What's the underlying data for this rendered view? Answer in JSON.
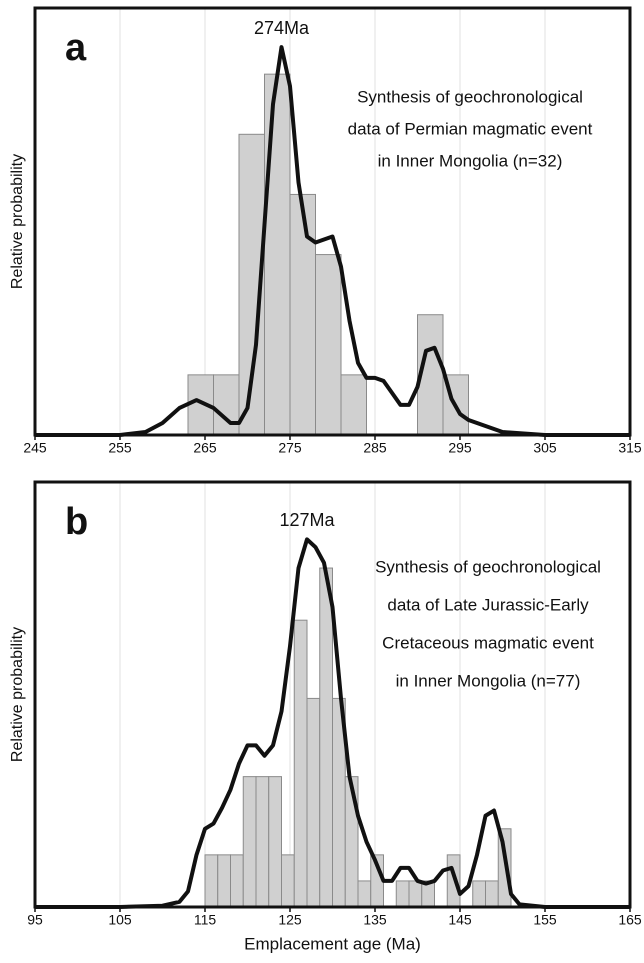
{
  "chart_data": [
    {
      "type": "histogram",
      "panel_label": "a",
      "peak_label": "274Ma",
      "annotation": [
        "Synthesis of geochronological",
        "data of Permian magmatic event",
        "in Inner Mongolia (n=32)"
      ],
      "y_label": "Relative probability",
      "bins": [
        263,
        266,
        269,
        272,
        275,
        278,
        281,
        284,
        287,
        290,
        293,
        296
      ],
      "values": [
        1,
        1,
        5,
        6,
        4,
        3,
        1,
        0,
        0,
        2,
        1
      ],
      "color": "#d0d0d0",
      "curve": {
        "color": "#111111",
        "x": [
          245,
          255,
          258,
          260,
          262,
          264,
          266,
          268,
          269,
          270,
          271,
          272,
          273,
          274,
          275,
          276,
          277,
          278,
          279,
          280,
          281,
          282,
          283,
          284,
          285,
          286,
          287,
          288,
          289,
          290,
          291,
          292,
          293,
          294,
          295,
          296,
          298,
          300,
          305,
          315
        ],
        "values": [
          0,
          0,
          0.05,
          0.2,
          0.45,
          0.58,
          0.45,
          0.2,
          0.2,
          0.45,
          1.5,
          3.5,
          5.5,
          6.45,
          5.8,
          4.2,
          3.3,
          3.2,
          3.25,
          3.3,
          2.8,
          1.9,
          1.2,
          0.95,
          0.95,
          0.9,
          0.7,
          0.5,
          0.5,
          0.8,
          1.4,
          1.45,
          1.1,
          0.6,
          0.35,
          0.25,
          0.15,
          0.05,
          0,
          0
        ]
      },
      "xlim": [
        245,
        315
      ],
      "xticks": [
        245,
        255,
        265,
        275,
        285,
        295,
        305,
        315
      ],
      "ylim": [
        0,
        7.1
      ],
      "grid": true
    },
    {
      "type": "histogram",
      "panel_label": "b",
      "peak_label": "127Ma",
      "annotation": [
        "Synthesis of geochronological",
        "data of Late Jurassic-Early",
        "Cretaceous magmatic event",
        "in Inner Mongolia (n=77)"
      ],
      "y_label": "Relative probability",
      "x_label": "Emplacement age (Ma)",
      "bins": [
        115,
        116.5,
        118,
        119.5,
        121,
        122.5,
        124,
        125.5,
        127,
        128.5,
        130,
        131.5,
        133,
        134.5,
        136,
        137.5,
        139,
        140.5,
        142,
        143.5,
        145,
        146.5,
        148,
        149.5,
        151
      ],
      "values": [
        2,
        2,
        2,
        5,
        5,
        5,
        2,
        11,
        8,
        13,
        8,
        5,
        1,
        2,
        0,
        1,
        1,
        1,
        0,
        2,
        0,
        1,
        1,
        3
      ],
      "color": "#d0d0d0",
      "curve": {
        "color": "#111111",
        "x": [
          95,
          105,
          110,
          112,
          113,
          114,
          115,
          116,
          117,
          118,
          119,
          120,
          121,
          122,
          123,
          124,
          125,
          126,
          127,
          128,
          129,
          130,
          131,
          132,
          133,
          134,
          135,
          136,
          137,
          138,
          139,
          140,
          141,
          142,
          143,
          144,
          145,
          146,
          147,
          148,
          149,
          150,
          151,
          152,
          155,
          165
        ],
        "values": [
          0,
          0,
          0.05,
          0.2,
          0.6,
          2.0,
          3.0,
          3.2,
          3.8,
          4.5,
          5.5,
          6.2,
          6.2,
          5.8,
          6.2,
          7.5,
          10,
          13,
          14.1,
          13.8,
          13.2,
          11.5,
          8,
          5,
          3.5,
          2.5,
          1.8,
          1.0,
          1.0,
          1.5,
          1.5,
          1.0,
          0.9,
          1.0,
          1.4,
          1.5,
          0.5,
          0.8,
          2.0,
          3.5,
          3.7,
          2.5,
          0.5,
          0.1,
          0,
          0
        ]
      },
      "xlim": [
        95,
        165
      ],
      "xticks": [
        95,
        105,
        115,
        125,
        135,
        145,
        155,
        165
      ],
      "ylim": [
        0,
        16.3
      ],
      "grid": true
    }
  ]
}
